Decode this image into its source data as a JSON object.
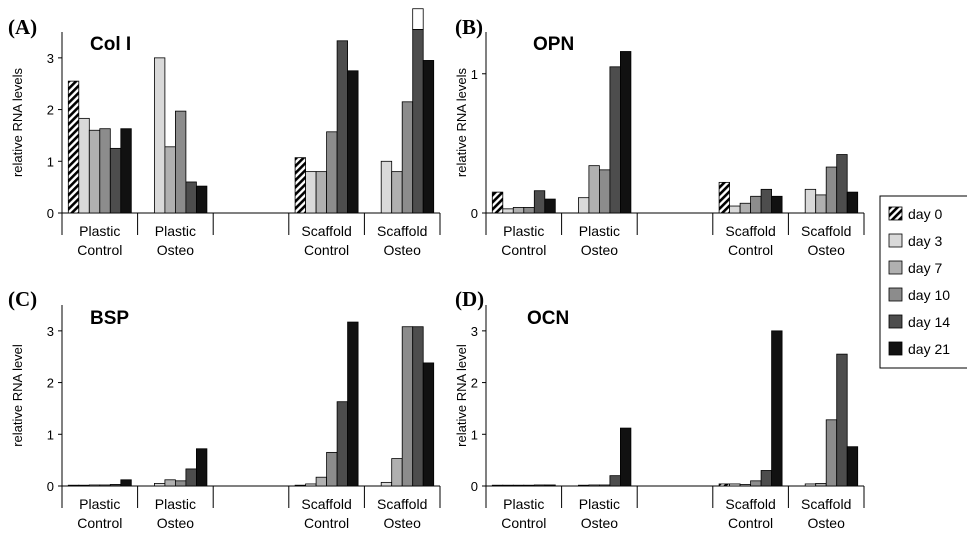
{
  "legend": [
    {
      "label": "day 0",
      "color": "#ffffff",
      "pattern": "hatch"
    },
    {
      "label": "day 3",
      "color": "#d9d9d9"
    },
    {
      "label": "day 7",
      "color": "#b0b0b0"
    },
    {
      "label": "day 10",
      "color": "#8c8c8c"
    },
    {
      "label": "day 14",
      "color": "#4d4d4d"
    },
    {
      "label": "day 21",
      "color": "#111111"
    }
  ],
  "chart_data": [
    {
      "panel": "(A)",
      "title": "Col I",
      "type": "bar",
      "ylabel": "relative RNA levels",
      "ylim": [
        0,
        3.5
      ],
      "yticks": [
        0,
        1,
        2,
        3
      ],
      "categories": [
        "Plastic\nControl",
        "Plastic\nOsteo",
        "",
        "Scaffold\nControl",
        "Scaffold\nOsteo"
      ],
      "groups": [
        [
          2.55,
          1.83,
          1.6,
          1.63,
          1.25,
          1.63
        ],
        [
          null,
          3.0,
          1.28,
          1.97,
          0.6,
          0.52
        ],
        [
          null,
          null,
          null,
          null,
          null,
          null
        ],
        [
          1.07,
          0.8,
          0.8,
          1.57,
          3.33,
          2.75
        ],
        [
          null,
          1.0,
          0.8,
          2.15,
          3.55,
          2.95
        ]
      ],
      "overflow": [
        null,
        null,
        null,
        null,
        3.95,
        null
      ],
      "overflow_group": 4
    },
    {
      "panel": "(B)",
      "title": "OPN",
      "type": "bar",
      "ylabel": "relative RNA levels",
      "ylim": [
        0,
        1.3
      ],
      "yticks": [
        0,
        1
      ],
      "categories": [
        "Plastic\nControl",
        "Plastic\nOsteo",
        "",
        "Scaffold\nControl",
        "Scaffold\nOsteo"
      ],
      "groups": [
        [
          0.15,
          0.03,
          0.04,
          0.04,
          0.16,
          0.1
        ],
        [
          null,
          0.11,
          0.34,
          0.31,
          1.05,
          1.16
        ],
        [
          null,
          null,
          null,
          null,
          null,
          null
        ],
        [
          0.22,
          0.05,
          0.07,
          0.12,
          0.17,
          0.12
        ],
        [
          null,
          0.17,
          0.13,
          0.33,
          0.42,
          0.15
        ]
      ]
    },
    {
      "panel": "(C)",
      "title": "BSP",
      "type": "bar",
      "ylabel": "relative RNA level",
      "ylim": [
        0,
        3.5
      ],
      "yticks": [
        0,
        1,
        2,
        3
      ],
      "categories": [
        "Plastic\nControl",
        "Plastic\nOsteo",
        "",
        "Scaffold\nControl",
        "Scaffold\nOsteo"
      ],
      "groups": [
        [
          0.01,
          0.01,
          0.02,
          0.02,
          0.03,
          0.12
        ],
        [
          null,
          0.05,
          0.12,
          0.1,
          0.33,
          0.72
        ],
        [
          null,
          null,
          null,
          null,
          null,
          null
        ],
        [
          0.01,
          0.04,
          0.17,
          0.65,
          1.63,
          3.17
        ],
        [
          null,
          0.07,
          0.53,
          3.08,
          3.08,
          2.38
        ]
      ]
    },
    {
      "panel": "(D)",
      "title": "OCN",
      "type": "bar",
      "ylabel": "relative RNA level",
      "ylim": [
        0,
        3.5
      ],
      "yticks": [
        0,
        1,
        2,
        3
      ],
      "categories": [
        "Plastic\nControl",
        "Plastic\nOsteo",
        "",
        "Scaffold\nControl",
        "Scaffold\nOsteo"
      ],
      "groups": [
        [
          0.01,
          0.01,
          0.01,
          0.01,
          0.02,
          0.02
        ],
        [
          null,
          0.01,
          0.02,
          0.02,
          0.2,
          1.12
        ],
        [
          null,
          null,
          null,
          null,
          null,
          null
        ],
        [
          0.04,
          0.04,
          0.03,
          0.1,
          0.3,
          3.0
        ],
        [
          null,
          0.04,
          0.05,
          1.28,
          2.55,
          0.76
        ]
      ]
    }
  ]
}
